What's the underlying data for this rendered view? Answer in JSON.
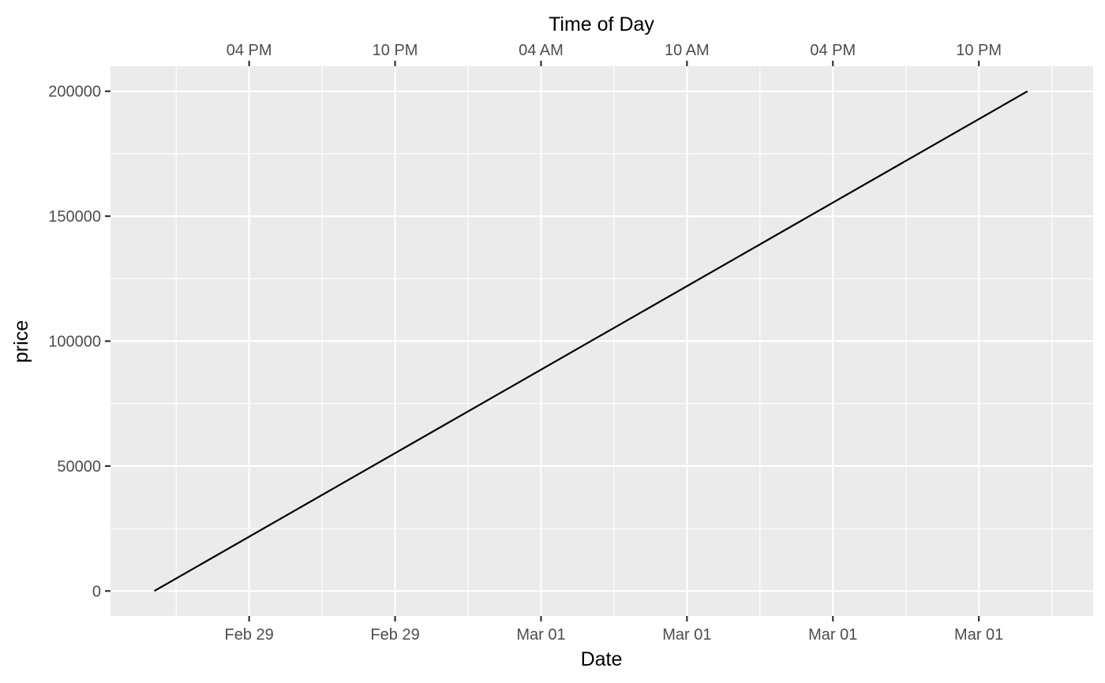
{
  "chart_data": {
    "type": "line",
    "title": "",
    "xlabel": "Date",
    "x2label": "Time of Day",
    "ylabel": "price",
    "x_unit": "datetime",
    "xlim": [
      "2024-02-29 10:18",
      "2024-03-02 02:42"
    ],
    "ylim": [
      -10000,
      210000
    ],
    "x_ticks": [
      {
        "at": "2024-02-29 16:00",
        "label": "Feb 29",
        "top_label": "04 PM"
      },
      {
        "at": "2024-02-29 22:00",
        "label": "Feb 29",
        "top_label": "10 PM"
      },
      {
        "at": "2024-03-01 04:00",
        "label": "Mar 01",
        "top_label": "04 AM"
      },
      {
        "at": "2024-03-01 10:00",
        "label": "Mar 01",
        "top_label": "10 AM"
      },
      {
        "at": "2024-03-01 16:00",
        "label": "Mar 01",
        "top_label": "04 PM"
      },
      {
        "at": "2024-03-01 22:00",
        "label": "Mar 01",
        "top_label": "10 PM"
      }
    ],
    "x_minor_ticks": [
      "2024-02-29 13:00",
      "2024-02-29 19:00",
      "2024-03-01 01:00",
      "2024-03-01 07:00",
      "2024-03-01 13:00",
      "2024-03-01 19:00",
      "2024-03-02 01:00"
    ],
    "y_ticks": [
      0,
      50000,
      100000,
      150000,
      200000
    ],
    "y_minor_ticks": [
      25000,
      75000,
      125000,
      175000
    ],
    "grid": true,
    "series": [
      {
        "color": "#000000",
        "points": [
          {
            "x": "2024-02-29 12:06",
            "y": 0
          },
          {
            "x": "2024-03-02 00:00",
            "y": 200000
          }
        ]
      }
    ],
    "colors": {
      "panel": "#ebebeb",
      "grid": "#ffffff",
      "line": "#000000",
      "tick_text": "#4d4d4d",
      "tick_mark": "#333333"
    }
  }
}
